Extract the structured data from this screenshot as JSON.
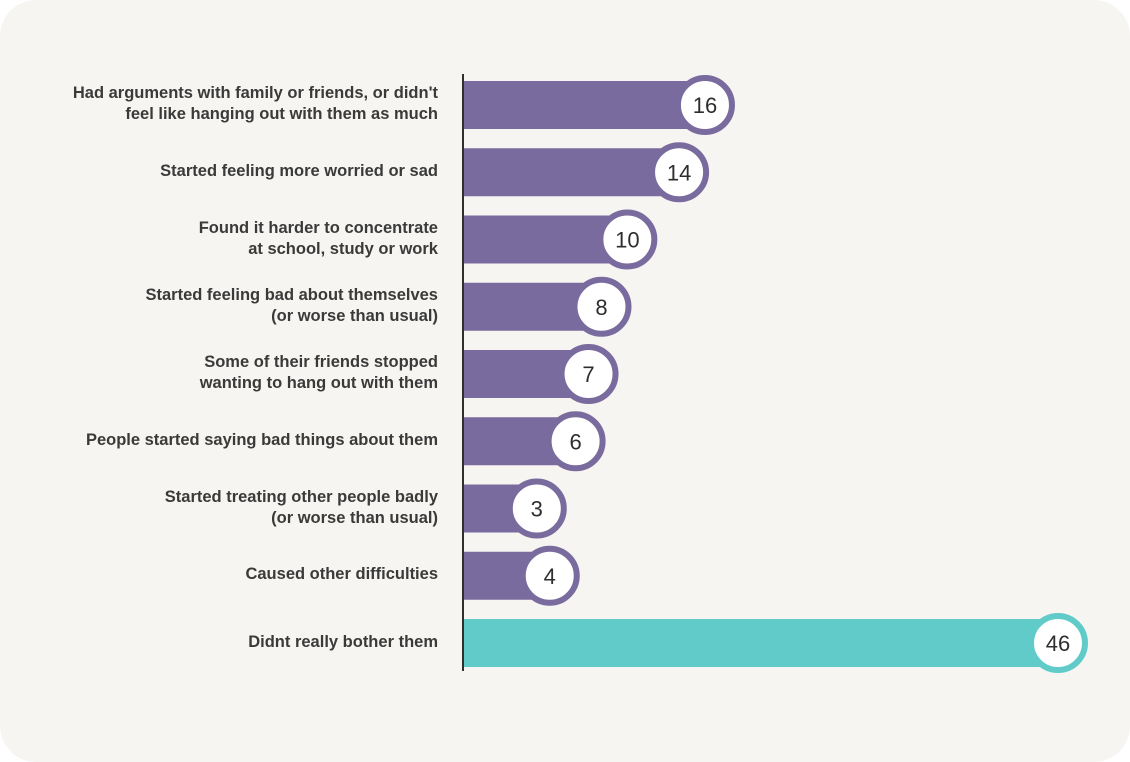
{
  "chart_data": {
    "type": "bar",
    "orientation": "horizontal",
    "title": "",
    "xlabel": "",
    "ylabel": "",
    "xlim": [
      0,
      46
    ],
    "grid": false,
    "legend": "none",
    "categories": [
      "Had arguments with family or friends, or didn't\nfeel like hanging out with them as much",
      "Started feeling more worried or sad",
      "Found it harder to concentrate\nat school, study or work",
      "Started feeling bad about themselves\n(or worse than usual)",
      "Some of their friends stopped\nwanting to hang out with them",
      "People started saying bad things about them",
      "Started treating other people badly\n(or worse than usual)",
      "Caused other difficulties",
      "Didnt really bother them"
    ],
    "values": [
      16,
      14,
      10,
      8,
      7,
      6,
      3,
      4,
      46
    ],
    "colors": [
      "#7a6b9e",
      "#7a6b9e",
      "#7a6b9e",
      "#7a6b9e",
      "#7a6b9e",
      "#7a6b9e",
      "#7a6b9e",
      "#7a6b9e",
      "#60cbc8"
    ]
  }
}
